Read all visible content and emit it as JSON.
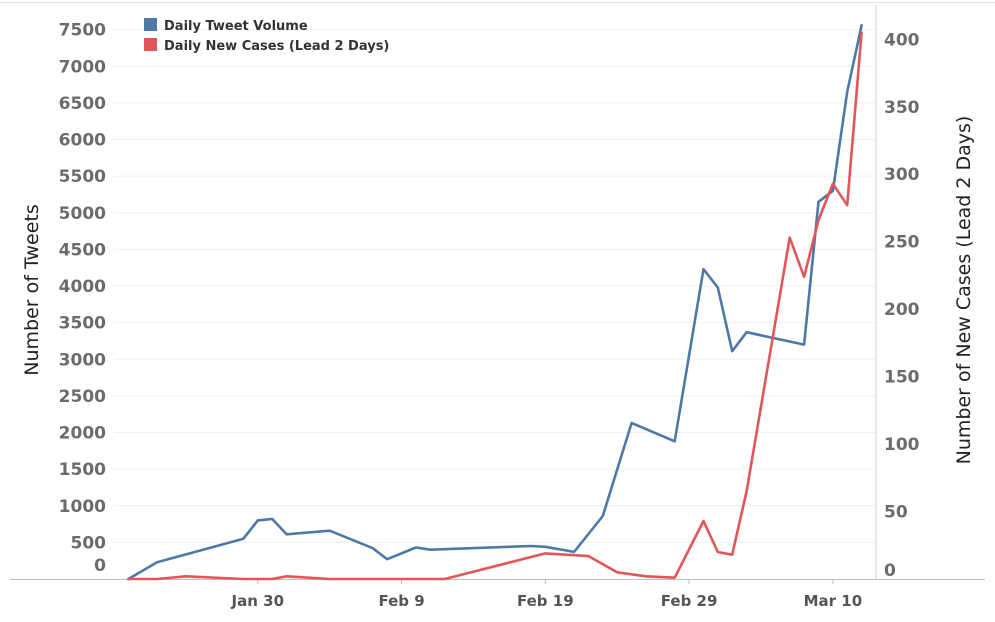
{
  "chart_data": {
    "type": "line",
    "x_type": "date",
    "ylabel": "Number of Tweets",
    "y2label": "Number of New Cases (Lead 2 Days)",
    "ylim": [
      0,
      7700
    ],
    "y2lim": [
      0,
      418
    ],
    "xlim": [
      "2020-01-20",
      "2020-03-13"
    ],
    "y_ticks": [
      0,
      500,
      1000,
      1500,
      2000,
      2500,
      3000,
      3500,
      4000,
      4500,
      5000,
      5500,
      6000,
      6500,
      7000,
      7500
    ],
    "y2_ticks": [
      0,
      50,
      100,
      150,
      200,
      250,
      300,
      350,
      400
    ],
    "x_ticks": [
      {
        "date": "2020-01-30",
        "label": "Jan 30"
      },
      {
        "date": "2020-02-09",
        "label": "Feb 9"
      },
      {
        "date": "2020-02-19",
        "label": "Feb 19"
      },
      {
        "date": "2020-02-29",
        "label": "Feb 29"
      },
      {
        "date": "2020-03-10",
        "label": "Mar 10"
      }
    ],
    "grid": true,
    "legend_position": "top-left",
    "series": [
      {
        "name": "Daily Tweet Volume",
        "axis": "left",
        "color": "#4e79a7",
        "points": [
          [
            "2020-01-21",
            0
          ],
          [
            "2020-01-23",
            230
          ],
          [
            "2020-01-29",
            550
          ],
          [
            "2020-01-30",
            800
          ],
          [
            "2020-01-31",
            820
          ],
          [
            "2020-02-01",
            610
          ],
          [
            "2020-02-04",
            660
          ],
          [
            "2020-02-07",
            420
          ],
          [
            "2020-02-08",
            270
          ],
          [
            "2020-02-10",
            430
          ],
          [
            "2020-02-11",
            400
          ],
          [
            "2020-02-18",
            450
          ],
          [
            "2020-02-19",
            440
          ],
          [
            "2020-02-21",
            370
          ],
          [
            "2020-02-23",
            860
          ],
          [
            "2020-02-25",
            2130
          ],
          [
            "2020-02-28",
            1880
          ],
          [
            "2020-03-01",
            4230
          ],
          [
            "2020-03-02",
            3980
          ],
          [
            "2020-03-03",
            3110
          ],
          [
            "2020-03-04",
            3370
          ],
          [
            "2020-03-08",
            3200
          ],
          [
            "2020-03-09",
            5150
          ],
          [
            "2020-03-10",
            5300
          ],
          [
            "2020-03-11",
            6650
          ],
          [
            "2020-03-12",
            7560
          ]
        ]
      },
      {
        "name": "Daily New Cases (Lead 2 Days)",
        "axis": "right",
        "color": "#e15759",
        "points": [
          [
            "2020-01-21",
            0
          ],
          [
            "2020-01-23",
            0
          ],
          [
            "2020-01-25",
            2
          ],
          [
            "2020-01-29",
            0
          ],
          [
            "2020-01-31",
            0
          ],
          [
            "2020-02-01",
            2
          ],
          [
            "2020-02-04",
            0
          ],
          [
            "2020-02-12",
            0
          ],
          [
            "2020-02-19",
            19
          ],
          [
            "2020-02-22",
            17
          ],
          [
            "2020-02-24",
            5
          ],
          [
            "2020-02-26",
            2
          ],
          [
            "2020-02-28",
            1
          ],
          [
            "2020-03-01",
            43
          ],
          [
            "2020-03-02",
            20
          ],
          [
            "2020-03-03",
            18
          ],
          [
            "2020-03-04",
            65
          ],
          [
            "2020-03-07",
            253
          ],
          [
            "2020-03-08",
            224
          ],
          [
            "2020-03-09",
            266
          ],
          [
            "2020-03-10",
            293
          ],
          [
            "2020-03-11",
            277
          ],
          [
            "2020-03-12",
            405
          ]
        ]
      }
    ]
  }
}
